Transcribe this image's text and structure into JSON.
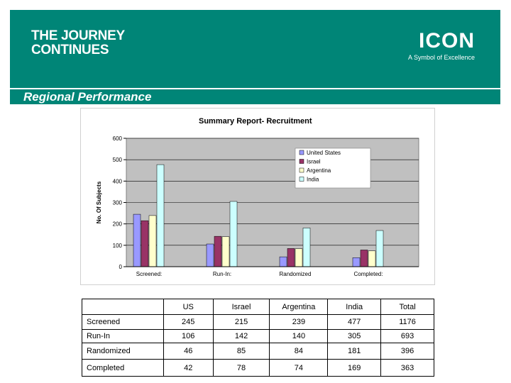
{
  "header": {
    "tagline_line1": "THE JOURNEY",
    "tagline_line2": "CONTINUES",
    "logo_word": "ICON",
    "logo_tagline": "A Symbol of Excellence",
    "bg_color": "#008577"
  },
  "slide_title": "Regional Performance",
  "chart_data": {
    "type": "bar",
    "title": "Summary Report- Recruitment",
    "xlabel": "",
    "ylabel": "No. Of Subjects",
    "categories": [
      "Screened:",
      "Run-In:",
      "Randomized",
      "Completed:"
    ],
    "series": [
      {
        "name": "United States",
        "color": "#9999ff",
        "values": [
          245,
          106,
          46,
          42
        ]
      },
      {
        "name": "Israel",
        "color": "#993366",
        "values": [
          215,
          142,
          85,
          78
        ]
      },
      {
        "name": "Argentina",
        "color": "#ffffcc",
        "values": [
          239,
          140,
          84,
          74
        ]
      },
      {
        "name": "India",
        "color": "#ccffff",
        "values": [
          477,
          305,
          181,
          169
        ]
      }
    ],
    "ylim": [
      0,
      600
    ],
    "yticks": [
      0,
      100,
      200,
      300,
      400,
      500,
      600
    ],
    "grid": true,
    "legend_position": "top-right",
    "plot_bg": "#c0c0c0"
  },
  "table": {
    "columns": [
      "",
      "US",
      "Israel",
      "Argentina",
      "India",
      "Total"
    ],
    "rows": [
      {
        "label": "Screened",
        "cells": [
          "245",
          "215",
          "239",
          "477",
          "1176"
        ]
      },
      {
        "label": "Run-In",
        "cells": [
          "106",
          "142",
          "140",
          "305",
          "693"
        ]
      },
      {
        "label": "Randomized",
        "cells": [
          "46",
          "85",
          "84",
          "181",
          "396"
        ]
      },
      {
        "label": "Completed",
        "cells": [
          "42",
          "78",
          "74",
          "169",
          "363"
        ]
      }
    ]
  }
}
